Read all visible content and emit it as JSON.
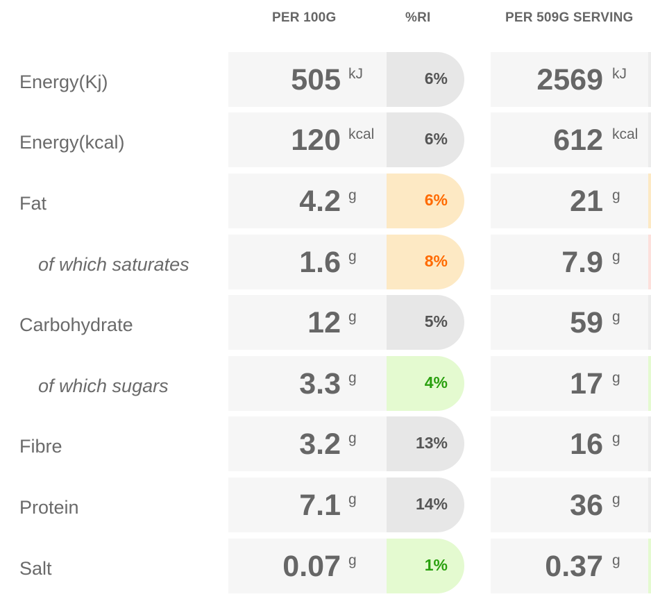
{
  "headers": {
    "per_100g": "PER 100G",
    "ri": "%RI",
    "per_serving": "PER 509G SERVING"
  },
  "rows": [
    {
      "label": "Energy(Kj)",
      "sub": false,
      "v100": "505",
      "u100": "kJ",
      "ri": "6%",
      "ri_level": "neutral",
      "vserv": "2569",
      "userv": "kJ",
      "serv_level": "neutral"
    },
    {
      "label": "Energy(kcal)",
      "sub": false,
      "v100": "120",
      "u100": "kcal",
      "ri": "6%",
      "ri_level": "neutral",
      "vserv": "612",
      "userv": "kcal",
      "serv_level": "neutral"
    },
    {
      "label": "Fat",
      "sub": false,
      "v100": "4.2",
      "u100": "g",
      "ri": "6%",
      "ri_level": "amber",
      "vserv": "21",
      "userv": "g",
      "serv_level": "amber"
    },
    {
      "label": "of which saturates",
      "sub": true,
      "v100": "1.6",
      "u100": "g",
      "ri": "8%",
      "ri_level": "amber",
      "vserv": "7.9",
      "userv": "g",
      "serv_level": "red"
    },
    {
      "label": "Carbohydrate",
      "sub": false,
      "v100": "12",
      "u100": "g",
      "ri": "5%",
      "ri_level": "neutral",
      "vserv": "59",
      "userv": "g",
      "serv_level": "neutral"
    },
    {
      "label": "of which sugars",
      "sub": true,
      "v100": "3.3",
      "u100": "g",
      "ri": "4%",
      "ri_level": "green",
      "vserv": "17",
      "userv": "g",
      "serv_level": "green"
    },
    {
      "label": "Fibre",
      "sub": false,
      "v100": "3.2",
      "u100": "g",
      "ri": "13%",
      "ri_level": "neutral",
      "vserv": "16",
      "userv": "g",
      "serv_level": "neutral"
    },
    {
      "label": "Protein",
      "sub": false,
      "v100": "7.1",
      "u100": "g",
      "ri": "14%",
      "ri_level": "neutral",
      "vserv": "36",
      "userv": "g",
      "serv_level": "neutral"
    },
    {
      "label": "Salt",
      "sub": false,
      "v100": "0.07",
      "u100": "g",
      "ri": "1%",
      "ri_level": "green",
      "vserv": "0.37",
      "userv": "g",
      "serv_level": "green"
    }
  ],
  "colors": {
    "cell_bg": "#f6f6f6",
    "ri_neutral": "#e7e7e7",
    "ri_amber_bg": "#fde9c4",
    "ri_amber_text": "#ff6a00",
    "ri_green_bg": "#e4fad0",
    "ri_green_text": "#2aa00f"
  }
}
